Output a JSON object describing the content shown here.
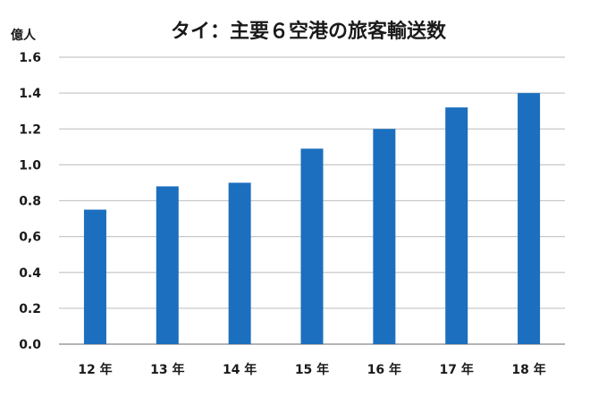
{
  "chart_data": {
    "type": "bar",
    "title": "タイ：主要６空港の旅客輸送数",
    "unit_label": "億人",
    "categories": [
      "12 年",
      "13 年",
      "14 年",
      "15 年",
      "16 年",
      "17 年",
      "18 年"
    ],
    "values": [
      0.75,
      0.88,
      0.9,
      1.09,
      1.2,
      1.32,
      1.4
    ],
    "y_tick_labels": [
      "0.0",
      "0.2",
      "0.4",
      "0,6",
      "0.8",
      "1.0",
      "1.2",
      "1.4",
      "1.6"
    ],
    "ylim": [
      0,
      1.6
    ],
    "grid": true,
    "bar_color": "#1b6fbe"
  }
}
